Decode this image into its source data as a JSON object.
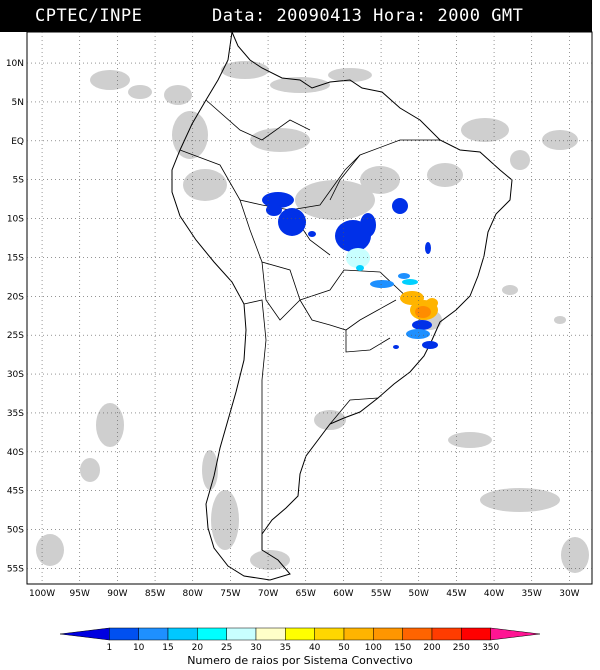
{
  "header": {
    "source": "CPTEC/INPE",
    "date_label": "Data:",
    "date_value": "20090413",
    "time_label": "Hora:",
    "time_value": "2000 GMT"
  },
  "map": {
    "region": "South America",
    "lat_labels": [
      "10N",
      "5N",
      "EQ",
      "5S",
      "10S",
      "15S",
      "20S",
      "25S",
      "30S",
      "35S",
      "40S",
      "45S",
      "50S",
      "55S"
    ],
    "lon_labels": [
      "100W",
      "95W",
      "90W",
      "85W",
      "80W",
      "75W",
      "70W",
      "65W",
      "60W",
      "55W",
      "50W",
      "45W",
      "40W",
      "35W",
      "30W"
    ],
    "lat_values": [
      10,
      5,
      0,
      -5,
      -10,
      -15,
      -20,
      -25,
      -30,
      -35,
      -40,
      -45,
      -50,
      -55
    ],
    "lon_values": [
      -100,
      -95,
      -90,
      -85,
      -80,
      -75,
      -70,
      -65,
      -60,
      -55,
      -50,
      -45,
      -40,
      -35,
      -30
    ],
    "lat_range": [
      -57,
      14
    ],
    "lon_range": [
      -102,
      -27
    ],
    "gridlines": "dotted",
    "cloud_color": "#c8c8c8"
  },
  "colorbar": {
    "levels": [
      "1",
      "10",
      "15",
      "20",
      "25",
      "30",
      "35",
      "40",
      "50",
      "100",
      "150",
      "200",
      "250",
      "350"
    ],
    "colors": [
      "#0000e0",
      "#0050f0",
      "#1e90ff",
      "#00c8ff",
      "#00ffff",
      "#c8ffff",
      "#ffffc8",
      "#ffff00",
      "#ffd700",
      "#ffb400",
      "#ff9600",
      "#ff6400",
      "#ff3c00",
      "#ff0000",
      "#ff1493"
    ],
    "caption": "Numero de raios por Sistema Convectivo"
  }
}
